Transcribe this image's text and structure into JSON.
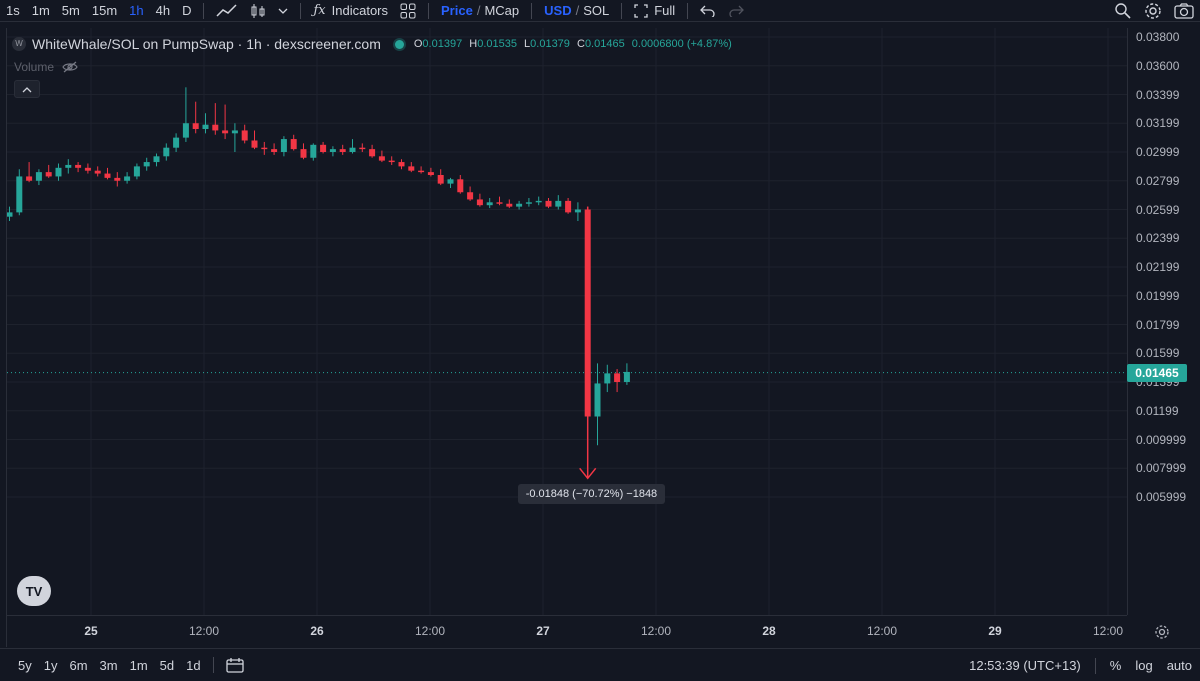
{
  "toolbar": {
    "timeframes": [
      "1s",
      "1m",
      "5m",
      "15m",
      "1h",
      "4h",
      "D"
    ],
    "active_timeframe": "1h",
    "indicators_label": "Indicators",
    "price_label": "Price",
    "mcap_label": "MCap",
    "usd_label": "USD",
    "sol_label": "SOL",
    "full_label": "Full"
  },
  "legend": {
    "coin_letter": "W",
    "title": "WhiteWhale/SOL on PumpSwap · 1h · dexscreener.com",
    "o_label": "O",
    "o_value": "0.01397",
    "h_label": "H",
    "h_value": "0.01535",
    "l_label": "L",
    "l_value": "0.01379",
    "c_label": "C",
    "c_value": "0.01465",
    "change": "0.0006800 (+4.87%)",
    "volume_label": "Volume"
  },
  "price_axis": [
    "0.03800",
    "0.03600",
    "0.03399",
    "0.03199",
    "0.02999",
    "0.02799",
    "0.02599",
    "0.02399",
    "0.02199",
    "0.01999",
    "0.01799",
    "0.01599",
    "0.01399",
    "0.01199",
    "0.009999",
    "0.007999",
    "0.005999"
  ],
  "time_axis": [
    {
      "label": "25",
      "day": true
    },
    {
      "label": "12:00",
      "day": false
    },
    {
      "label": "26",
      "day": true
    },
    {
      "label": "12:00",
      "day": false
    },
    {
      "label": "27",
      "day": true
    },
    {
      "label": "12:00",
      "day": false
    },
    {
      "label": "28",
      "day": true
    },
    {
      "label": "12:00",
      "day": false
    },
    {
      "label": "29",
      "day": true
    },
    {
      "label": "12:00",
      "day": false
    }
  ],
  "last_price": "0.01465",
  "measure": "-0.01848 (−70.72%) −1848",
  "colors": {
    "up": "#26a69a",
    "down": "#f23645",
    "bg": "#131722",
    "accent": "#2962ff"
  },
  "bottom": {
    "ranges": [
      "5y",
      "1y",
      "6m",
      "3m",
      "1m",
      "5d",
      "1d"
    ],
    "clock": "12:53:39 (UTC+13)",
    "percent": "%",
    "log": "log",
    "auto": "auto"
  },
  "chart_data": {
    "type": "candlestick",
    "ylim": [
      0.005,
      0.039
    ],
    "candles": [
      [
        0.0255,
        0.0262,
        0.0252,
        0.0258
      ],
      [
        0.0258,
        0.0288,
        0.0256,
        0.0283
      ],
      [
        0.0283,
        0.0293,
        0.0279,
        0.028
      ],
      [
        0.028,
        0.0288,
        0.0277,
        0.0286
      ],
      [
        0.0286,
        0.0291,
        0.0282,
        0.0283
      ],
      [
        0.0283,
        0.0292,
        0.028,
        0.0289
      ],
      [
        0.0289,
        0.0295,
        0.0285,
        0.0291
      ],
      [
        0.0291,
        0.0293,
        0.0286,
        0.0289
      ],
      [
        0.0289,
        0.0292,
        0.0285,
        0.0287
      ],
      [
        0.0287,
        0.029,
        0.0283,
        0.0285
      ],
      [
        0.0285,
        0.0289,
        0.0281,
        0.0282
      ],
      [
        0.0282,
        0.0286,
        0.0276,
        0.028
      ],
      [
        0.028,
        0.0286,
        0.0278,
        0.0283
      ],
      [
        0.0283,
        0.0292,
        0.0281,
        0.029
      ],
      [
        0.029,
        0.0296,
        0.0287,
        0.0293
      ],
      [
        0.0293,
        0.0299,
        0.029,
        0.0297
      ],
      [
        0.0297,
        0.0306,
        0.0294,
        0.0303
      ],
      [
        0.0303,
        0.0313,
        0.03,
        0.031
      ],
      [
        0.031,
        0.0345,
        0.0307,
        0.032
      ],
      [
        0.032,
        0.0335,
        0.0313,
        0.0316
      ],
      [
        0.0316,
        0.0327,
        0.0313,
        0.0319
      ],
      [
        0.0319,
        0.0334,
        0.0312,
        0.0315
      ],
      [
        0.0315,
        0.0333,
        0.0309,
        0.0313
      ],
      [
        0.0313,
        0.032,
        0.03,
        0.0315
      ],
      [
        0.0315,
        0.0319,
        0.0306,
        0.0308
      ],
      [
        0.0308,
        0.0315,
        0.0302,
        0.0303
      ],
      [
        0.0303,
        0.0307,
        0.0298,
        0.0302
      ],
      [
        0.0302,
        0.0306,
        0.0298,
        0.03
      ],
      [
        0.03,
        0.0311,
        0.0297,
        0.0309
      ],
      [
        0.0309,
        0.0312,
        0.0301,
        0.0302
      ],
      [
        0.0302,
        0.0306,
        0.0295,
        0.0296
      ],
      [
        0.0296,
        0.0306,
        0.0294,
        0.0305
      ],
      [
        0.0305,
        0.0307,
        0.0299,
        0.03
      ],
      [
        0.03,
        0.0304,
        0.0297,
        0.0302
      ],
      [
        0.0302,
        0.0305,
        0.0298,
        0.03
      ],
      [
        0.03,
        0.0309,
        0.0299,
        0.0303
      ],
      [
        0.0303,
        0.0306,
        0.03,
        0.0302
      ],
      [
        0.0302,
        0.0305,
        0.0296,
        0.0297
      ],
      [
        0.0297,
        0.0301,
        0.0293,
        0.0294
      ],
      [
        0.0294,
        0.0297,
        0.0291,
        0.0293
      ],
      [
        0.0293,
        0.0295,
        0.0288,
        0.029
      ],
      [
        0.029,
        0.0293,
        0.0286,
        0.0287
      ],
      [
        0.0287,
        0.029,
        0.0285,
        0.0286
      ],
      [
        0.0286,
        0.0289,
        0.0283,
        0.0284
      ],
      [
        0.0284,
        0.0288,
        0.0277,
        0.0278
      ],
      [
        0.0278,
        0.0282,
        0.0275,
        0.0281
      ],
      [
        0.0281,
        0.0284,
        0.0271,
        0.0272
      ],
      [
        0.0272,
        0.0276,
        0.0266,
        0.0267
      ],
      [
        0.0267,
        0.0271,
        0.0262,
        0.0263
      ],
      [
        0.0263,
        0.0268,
        0.0261,
        0.0265
      ],
      [
        0.0265,
        0.0269,
        0.0263,
        0.0264
      ],
      [
        0.0264,
        0.0267,
        0.0261,
        0.0262
      ],
      [
        0.0262,
        0.0266,
        0.026,
        0.0264
      ],
      [
        0.0264,
        0.0268,
        0.0262,
        0.0265
      ],
      [
        0.0265,
        0.0269,
        0.0263,
        0.0266
      ],
      [
        0.0266,
        0.0268,
        0.0261,
        0.0262
      ],
      [
        0.0262,
        0.027,
        0.026,
        0.0266
      ],
      [
        0.0266,
        0.0268,
        0.0257,
        0.0258
      ],
      [
        0.0258,
        0.0265,
        0.0252,
        0.026
      ],
      [
        0.026,
        0.0262,
        0.0115,
        0.0116
      ],
      [
        0.0116,
        0.0153,
        0.0096,
        0.0139
      ],
      [
        0.0139,
        0.0152,
        0.0133,
        0.0146
      ],
      [
        0.0146,
        0.0149,
        0.0133,
        0.014
      ],
      [
        0.014,
        0.0153,
        0.0138,
        0.0147
      ]
    ]
  }
}
